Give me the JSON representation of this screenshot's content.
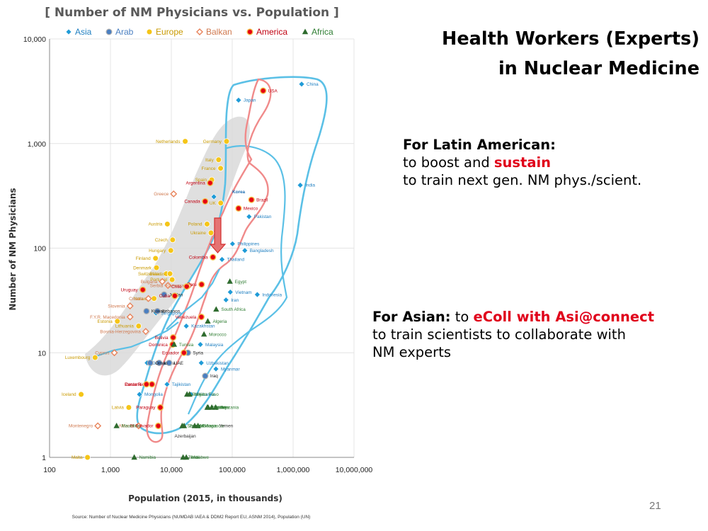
{
  "slide": {
    "title_line1": "Health Workers (Experts)",
    "title_line2": "in Nuclear Medicine",
    "latin_heading": "For Latin American:",
    "latin_line1_pre": "to boost and ",
    "latin_line1_emph": "sustain",
    "latin_line2": "to train next gen. NM phys./scient.",
    "asian_heading": "For Asian:",
    "asian_heading_rest": " to ",
    "asian_emph": "eColl with Asi@connect",
    "asian_line2": "to train scientists to collaborate with",
    "asian_line3": "NM experts",
    "page_number": "21"
  },
  "chart_data": {
    "type": "scatter",
    "title": "[ Number of NM Physicians vs. Population ]",
    "xlabel": "Population (2015, in thousands)",
    "ylabel": "Number of NM Physicians",
    "x_scale": "log",
    "y_scale": "log",
    "xlim": [
      100,
      10000000
    ],
    "ylim": [
      1,
      10000
    ],
    "x_ticks": [
      "100",
      "1,000",
      "10,000",
      "100,000",
      "1,000,000",
      "10,000,000"
    ],
    "y_ticks": [
      "1",
      "10",
      "100",
      "1,000",
      "10,000"
    ],
    "legend_position": "top",
    "annotation": "Korea",
    "source": "Source: Number of Nuclear Medicine Physicians (NUMDAB IAEA & DDM2 Report EU, ASNM 2014), Population (UN)",
    "colors": {
      "Asia": "#1f9bd7",
      "Arab": "#4a7fc1",
      "Europe": "#f5c518",
      "Balkan": "#e8835a",
      "America": "#e60012",
      "Africa": "#2e6b2e",
      "asia_outline": "#5bc0e6",
      "america_outline": "#f08a8a",
      "region": "#d9d9d9",
      "arrow": "#e57373"
    },
    "series": [
      {
        "name": "Asia",
        "points": [
          {
            "label": "China",
            "x": 1380000,
            "y": 3700
          },
          {
            "label": "Japan",
            "x": 127000,
            "y": 2600
          },
          {
            "label": "India",
            "x": 1310000,
            "y": 400
          },
          {
            "label": "Korea",
            "x": 50000,
            "y": 310
          },
          {
            "label": "Pakistan",
            "x": 189000,
            "y": 200
          },
          {
            "label": "Bangladesh",
            "x": 161000,
            "y": 95
          },
          {
            "label": "Philippines",
            "x": 101000,
            "y": 110
          },
          {
            "label": "Thailand",
            "x": 68000,
            "y": 78
          },
          {
            "label": "Vietnam",
            "x": 93000,
            "y": 38
          },
          {
            "label": "Indonesia",
            "x": 258000,
            "y": 36
          },
          {
            "label": "Iran",
            "x": 79000,
            "y": 32
          },
          {
            "label": "Malaysia",
            "x": 30000,
            "y": 12
          },
          {
            "label": "Kazakhstan",
            "x": 17600,
            "y": 18
          },
          {
            "label": "Singapore",
            "x": 5600,
            "y": 24
          },
          {
            "label": "Uzbekistan",
            "x": 31000,
            "y": 8
          },
          {
            "label": "Myanmar",
            "x": 54000,
            "y": 7
          },
          {
            "label": "Tajikistan",
            "x": 8500,
            "y": 5
          },
          {
            "label": "Mongolia",
            "x": 3000,
            "y": 4
          },
          {
            "label": "Sri Lanka",
            "x": 21000,
            "y": 4
          },
          {
            "label": "Georgia",
            "x": 4000,
            "y": 8
          }
        ]
      },
      {
        "name": "Arab",
        "points": [
          {
            "label": "Lebanon",
            "x": 5900,
            "y": 25
          },
          {
            "label": "Jordan",
            "x": 7600,
            "y": 36
          },
          {
            "label": "Syria",
            "x": 18700,
            "y": 10
          },
          {
            "label": "Libya",
            "x": 6300,
            "y": 8
          },
          {
            "label": "UAE",
            "x": 9200,
            "y": 8
          },
          {
            "label": "Iraq",
            "x": 36000,
            "y": 6
          },
          {
            "label": "Kuwait",
            "x": 3900,
            "y": 25
          },
          {
            "label": "Oman",
            "x": 4500,
            "y": 8
          }
        ]
      },
      {
        "name": "Europe",
        "points": [
          {
            "label": "Germany",
            "x": 80700,
            "y": 1050
          },
          {
            "label": "Netherlands",
            "x": 16900,
            "y": 1050
          },
          {
            "label": "Italy",
            "x": 59800,
            "y": 700
          },
          {
            "label": "France",
            "x": 64400,
            "y": 580
          },
          {
            "label": "Spain",
            "x": 46100,
            "y": 450
          },
          {
            "label": "UK",
            "x": 64700,
            "y": 270
          },
          {
            "label": "Poland",
            "x": 38600,
            "y": 170
          },
          {
            "label": "Ukraine",
            "x": 44800,
            "y": 140
          },
          {
            "label": "Austria",
            "x": 8600,
            "y": 170
          },
          {
            "label": "Czech",
            "x": 10500,
            "y": 120
          },
          {
            "label": "Hungary",
            "x": 9800,
            "y": 95
          },
          {
            "label": "Finland",
            "x": 5500,
            "y": 80
          },
          {
            "label": "Denmark",
            "x": 5700,
            "y": 65
          },
          {
            "label": "Switzerland",
            "x": 8300,
            "y": 57
          },
          {
            "label": "Belarus",
            "x": 9500,
            "y": 57
          },
          {
            "label": "Portugal",
            "x": 10300,
            "y": 50
          },
          {
            "label": "Norway",
            "x": 5200,
            "y": 33
          },
          {
            "label": "Lithuania",
            "x": 2900,
            "y": 18
          },
          {
            "label": "Estonia",
            "x": 1300,
            "y": 20
          },
          {
            "label": "Luxembourg",
            "x": 560,
            "y": 9
          },
          {
            "label": "Iceland",
            "x": 330,
            "y": 4
          },
          {
            "label": "Malta",
            "x": 420,
            "y": 1
          },
          {
            "label": "Latvia",
            "x": 2000,
            "y": 3
          }
        ]
      },
      {
        "name": "Balkan",
        "points": [
          {
            "label": "Greece",
            "x": 10900,
            "y": 330
          },
          {
            "label": "Bulgaria",
            "x": 7100,
            "y": 48
          },
          {
            "label": "Serbia",
            "x": 8800,
            "y": 44
          },
          {
            "label": "Romania",
            "x": 19500,
            "y": 44
          },
          {
            "label": "Slovenia",
            "x": 2100,
            "y": 28
          },
          {
            "label": "Croatia",
            "x": 4200,
            "y": 33
          },
          {
            "label": "F.Y.R. Macedonia",
            "x": 2100,
            "y": 22
          },
          {
            "label": "Bosnia-Herzegovina",
            "x": 3800,
            "y": 16
          },
          {
            "label": "Cyprus",
            "x": 1160,
            "y": 10
          },
          {
            "label": "Montenegro",
            "x": 620,
            "y": 2
          },
          {
            "label": "Albania",
            "x": 2900,
            "y": 2
          }
        ]
      },
      {
        "name": "America",
        "points": [
          {
            "label": "USA",
            "x": 322000,
            "y": 3200
          },
          {
            "label": "Brazil",
            "x": 207000,
            "y": 290
          },
          {
            "label": "Mexico",
            "x": 127000,
            "y": 240
          },
          {
            "label": "Argentina",
            "x": 43400,
            "y": 420
          },
          {
            "label": "Canada",
            "x": 35900,
            "y": 280
          },
          {
            "label": "Colombia",
            "x": 48200,
            "y": 82
          },
          {
            "label": "Peru",
            "x": 31400,
            "y": 45
          },
          {
            "label": "Chile",
            "x": 17900,
            "y": 43
          },
          {
            "label": "Uruguay",
            "x": 3400,
            "y": 40
          },
          {
            "label": "Cuba",
            "x": 11400,
            "y": 35
          },
          {
            "label": "Venezuela",
            "x": 31100,
            "y": 22
          },
          {
            "label": "Bolivia",
            "x": 10700,
            "y": 14
          },
          {
            "label": "Dominica",
            "x": 10500,
            "y": 12
          },
          {
            "label": "Ecuador",
            "x": 16100,
            "y": 10
          },
          {
            "label": "Costa Rica",
            "x": 4800,
            "y": 5
          },
          {
            "label": "Panama",
            "x": 3900,
            "y": 5
          },
          {
            "label": "Paraguay",
            "x": 6600,
            "y": 3
          },
          {
            "label": "El Salvador",
            "x": 6100,
            "y": 2
          }
        ]
      },
      {
        "name": "Africa",
        "points": [
          {
            "label": "Egypt",
            "x": 91500,
            "y": 48
          },
          {
            "label": "South Africa",
            "x": 54500,
            "y": 26
          },
          {
            "label": "Algeria",
            "x": 39700,
            "y": 20
          },
          {
            "label": "Morocco",
            "x": 34400,
            "y": 15
          },
          {
            "label": "Tunisia",
            "x": 11100,
            "y": 12
          },
          {
            "label": "Burkina Faso",
            "x": 18100,
            "y": 4
          },
          {
            "label": "Niger",
            "x": 19900,
            "y": 4
          },
          {
            "label": "Sudan",
            "x": 40200,
            "y": 3
          },
          {
            "label": "Tanzania",
            "x": 53500,
            "y": 3
          },
          {
            "label": "Kenya",
            "x": 46100,
            "y": 3
          },
          {
            "label": "Uganda",
            "x": 39000,
            "y": 3
          },
          {
            "label": "Ghana",
            "x": 27400,
            "y": 2
          },
          {
            "label": "Zambia",
            "x": 16200,
            "y": 2
          },
          {
            "label": "Senegal",
            "x": 15100,
            "y": 2
          },
          {
            "label": "Madagascar",
            "x": 24200,
            "y": 2
          },
          {
            "label": "Mauritius",
            "x": 1260,
            "y": 2
          },
          {
            "label": "Namibia",
            "x": 2460,
            "y": 1
          },
          {
            "label": "Zimbabwe",
            "x": 15600,
            "y": 1
          },
          {
            "label": "Mali",
            "x": 17600,
            "y": 1
          }
        ]
      }
    ],
    "unmarked_labels": [
      {
        "label": "Yemen",
        "x": 52000,
        "y": 2
      },
      {
        "label": "Azerbaijan",
        "x": 9600,
        "y": 1.6
      }
    ]
  }
}
